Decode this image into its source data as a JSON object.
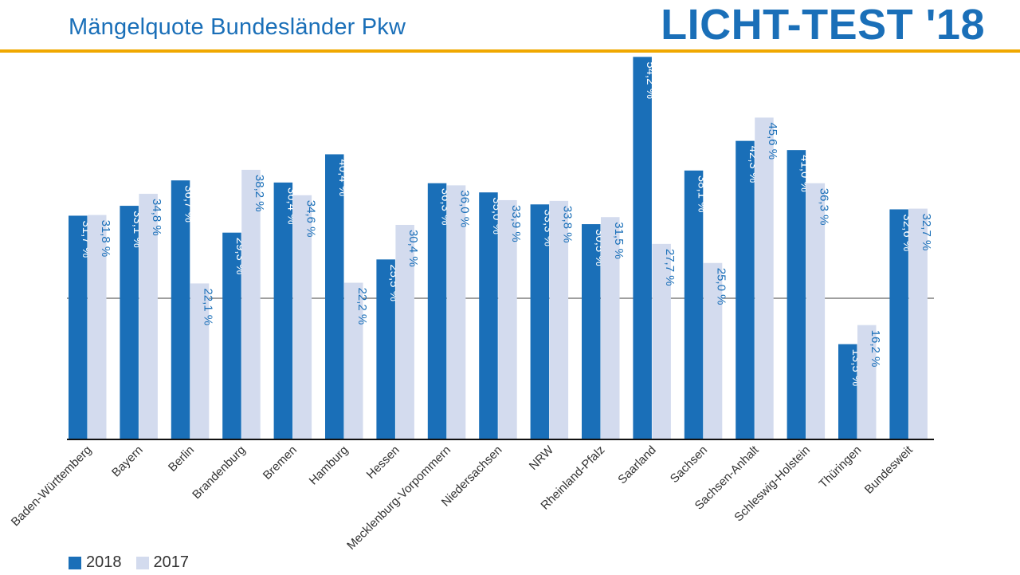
{
  "header": {
    "title": "Mängelquote Bundesländer Pkw",
    "brand": "LICHT-TEST '18"
  },
  "colors": {
    "accent_rule": "#f0a800",
    "series_2018": "#1a6fb8",
    "series_2017": "#d3dbee",
    "label_2018": "#ffffff",
    "label_2017": "#1a6fb8"
  },
  "chart_data": {
    "type": "bar",
    "categories": [
      "Baden-Württemberg",
      "Bayern",
      "Berlin",
      "Brandenburg",
      "Bremen",
      "Hamburg",
      "Hessen",
      "Mecklenburg-Vorpommern",
      "Niedersachsen",
      "NRW",
      "Rheinland-Pfalz",
      "Saarland",
      "Sachsen",
      "Sachsen-Anhalt",
      "Schleswig-Holstein",
      "Thüringen",
      "Bundesweit"
    ],
    "series": [
      {
        "name": "2018",
        "values": [
          31.7,
          33.1,
          36.7,
          29.3,
          36.4,
          40.4,
          25.5,
          36.3,
          35.0,
          33.3,
          30.5,
          54.2,
          38.1,
          42.3,
          41.0,
          13.5,
          32.6
        ],
        "labels": [
          "31,7 %",
          "33,1 %",
          "36,7 %",
          "29,3 %",
          "36,4 %",
          "40,4 %",
          "25,5 %",
          "36,3 %",
          "35,0 %",
          "33,3 %",
          "30,5 %",
          "54,2 %",
          "38,1 %",
          "42,3 %",
          "41,0 %",
          "13,5 %",
          "32,6 %"
        ]
      },
      {
        "name": "2017",
        "values": [
          31.8,
          34.8,
          22.1,
          38.2,
          34.6,
          22.2,
          30.4,
          36.0,
          33.9,
          33.8,
          31.5,
          27.7,
          25.0,
          45.6,
          36.3,
          16.2,
          32.7
        ],
        "labels": [
          "31,8 %",
          "34,8 %",
          "22,1 %",
          "38,2 %",
          "34,6 %",
          "22,2 %",
          "30,4 %",
          "36,0 %",
          "33,9 %",
          "33,8 %",
          "31,5 %",
          "27,7 %",
          "25,0 %",
          "45,6 %",
          "36,3 %",
          "16,2 %",
          "32,7 %"
        ]
      }
    ],
    "reference_line": 20,
    "ylim": [
      0,
      55
    ],
    "grid": false,
    "legend_position": "bottom-left",
    "xlabel": "",
    "ylabel": ""
  },
  "legend": [
    {
      "label": "2018",
      "color": "#1a6fb8"
    },
    {
      "label": "2017",
      "color": "#d3dbee"
    }
  ]
}
